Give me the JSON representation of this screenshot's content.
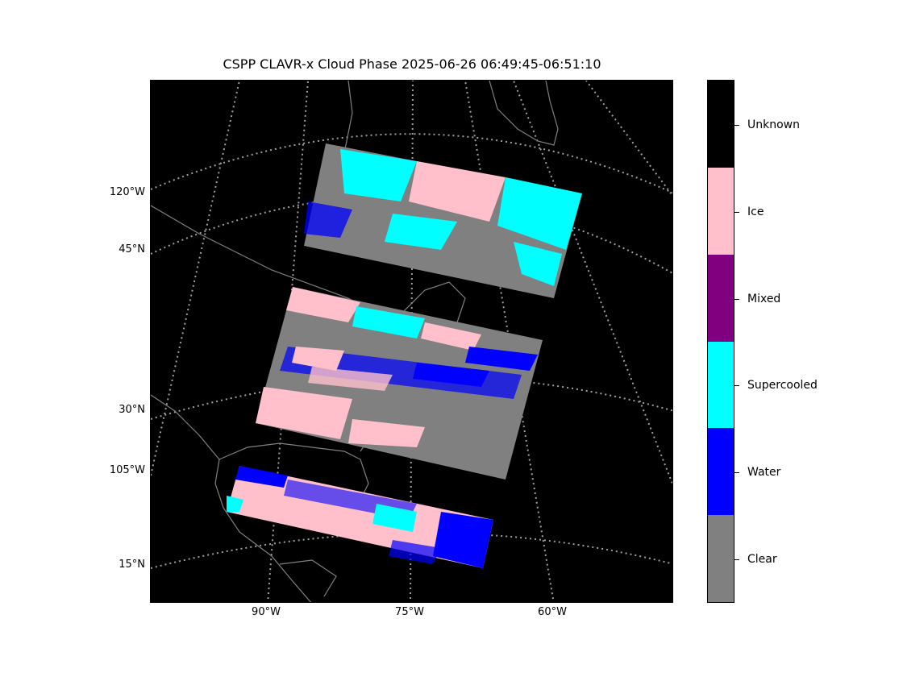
{
  "title": "CSPP CLAVR-x Cloud Phase 2025-06-26 06:49:45-06:51:10",
  "map": {
    "background": "#000000",
    "coastline_color": "#808080",
    "graticule_color": "#a0a0a0",
    "lat_labels": [
      "120°W",
      "45°N",
      "30°N",
      "105°W",
      "15°N"
    ],
    "lon_labels": [
      "90°W",
      "75°W",
      "60°W"
    ]
  },
  "legend": {
    "categories": [
      {
        "name": "Unknown",
        "color": "#000000"
      },
      {
        "name": "Ice",
        "color": "#ffc0cb"
      },
      {
        "name": "Mixed",
        "color": "#800080"
      },
      {
        "name": "Supercooled",
        "color": "#00ffff"
      },
      {
        "name": "Water",
        "color": "#0000ff"
      },
      {
        "name": "Clear",
        "color": "#808080"
      }
    ]
  }
}
